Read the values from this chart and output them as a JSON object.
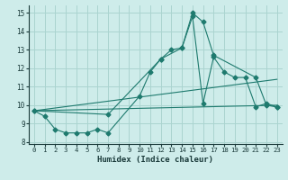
{
  "xlabel": "Humidex (Indice chaleur)",
  "background_color": "#ceecea",
  "grid_color": "#aad4d0",
  "line_color": "#1e7a6e",
  "xlim": [
    -0.5,
    23.5
  ],
  "ylim": [
    7.9,
    15.4
  ],
  "yticks": [
    8,
    9,
    10,
    11,
    12,
    13,
    14,
    15
  ],
  "xticks": [
    0,
    1,
    2,
    3,
    4,
    5,
    6,
    7,
    8,
    9,
    10,
    11,
    12,
    13,
    14,
    15,
    16,
    17,
    18,
    19,
    20,
    21,
    22,
    23
  ],
  "series": [
    {
      "x": [
        0,
        1,
        2,
        3,
        4,
        5,
        6,
        7,
        10,
        11,
        12,
        13,
        14,
        15,
        16,
        17,
        21,
        22,
        23
      ],
      "y": [
        9.7,
        9.4,
        8.7,
        8.5,
        8.5,
        8.5,
        8.7,
        8.5,
        10.5,
        11.8,
        12.5,
        13.0,
        13.1,
        15.0,
        14.5,
        12.7,
        11.5,
        10.0,
        9.9
      ]
    },
    {
      "x": [
        0,
        7,
        12,
        14,
        15,
        16,
        17,
        18,
        19,
        20,
        21,
        22,
        23
      ],
      "y": [
        9.7,
        9.5,
        12.5,
        13.1,
        14.8,
        10.1,
        12.6,
        11.8,
        11.5,
        11.5,
        9.9,
        10.1,
        9.9
      ]
    },
    {
      "x": [
        0,
        23
      ],
      "y": [
        9.7,
        11.4
      ]
    },
    {
      "x": [
        0,
        23
      ],
      "y": [
        9.7,
        10.0
      ]
    }
  ]
}
